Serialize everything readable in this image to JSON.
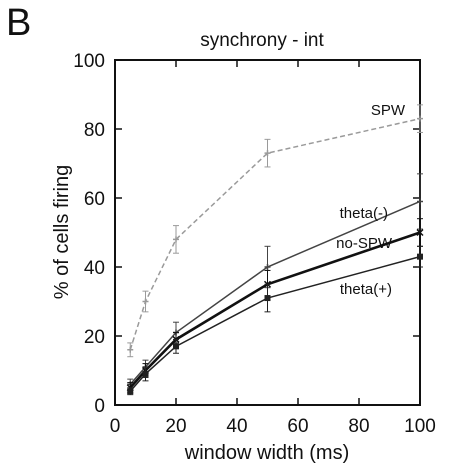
{
  "panel_label": "B",
  "chart_data": {
    "type": "line",
    "title": "synchrony - int",
    "xlabel": "window width (ms)",
    "ylabel": "% of cells firing",
    "xlim": [
      0,
      100
    ],
    "ylim": [
      0,
      100
    ],
    "xticks": [
      0,
      20,
      40,
      60,
      80,
      100
    ],
    "yticks": [
      0,
      20,
      40,
      60,
      80,
      100
    ],
    "grid": false,
    "legend": "inline labels",
    "x": [
      5,
      10,
      20,
      50,
      100
    ],
    "series": [
      {
        "name": "SPW",
        "values": [
          16,
          30,
          48,
          73,
          83
        ],
        "errors": [
          2,
          3,
          4,
          4,
          4
        ],
        "color": "#9a9a9a",
        "style": "dashed",
        "marker": "plus"
      },
      {
        "name": "theta(-)",
        "values": [
          6,
          11,
          21,
          40,
          59
        ],
        "errors": [
          1.5,
          2,
          3,
          6,
          8
        ],
        "color": "#444444",
        "style": "solid",
        "marker": "plus"
      },
      {
        "name": "no-SPW",
        "values": [
          5,
          10,
          19,
          35,
          50
        ],
        "errors": [
          1.5,
          2,
          2,
          4,
          4
        ],
        "color": "#111111",
        "style": "solid-thick",
        "marker": "x"
      },
      {
        "name": "theta(+)",
        "values": [
          4,
          9,
          17,
          31,
          43
        ],
        "errors": [
          1,
          2,
          2,
          4,
          3
        ],
        "color": "#222222",
        "style": "solid",
        "marker": "square"
      }
    ]
  }
}
